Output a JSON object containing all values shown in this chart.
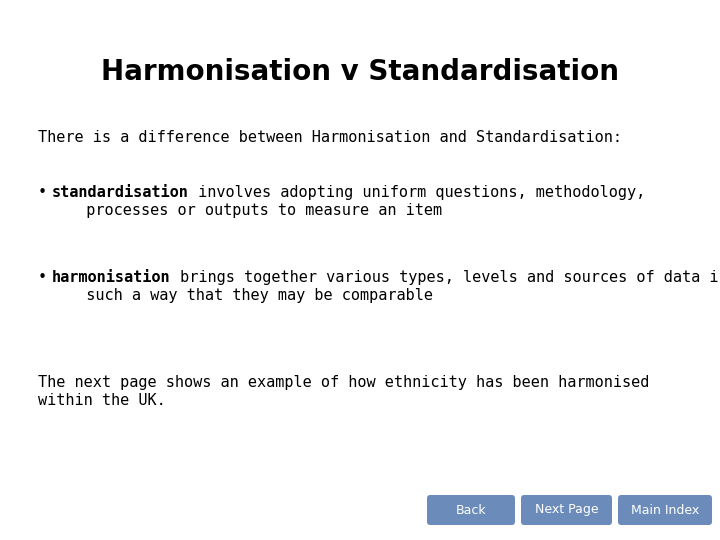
{
  "title": "Harmonisation v Standardisation",
  "title_fontsize": 20,
  "body_fontsize": 11,
  "bg_color": "#ffffff",
  "text_color": "#000000",
  "intro_text": "There is a difference between Harmonisation and Standardisation:",
  "bullet1_bold": "standardisation",
  "bullet1_line1_rest": " involves adopting uniform questions, methodology,",
  "bullet1_line2": "  processes or outputs to measure an item",
  "bullet2_bold": "harmonisation",
  "bullet2_line1_rest": " brings together various types, levels and sources of data in",
  "bullet2_line2": "  such a way that they may be comparable",
  "footer_line1": "The next page shows an example of how ethnicity has been harmonised",
  "footer_line2": "within the UK.",
  "buttons": [
    "Back",
    "Next Page",
    "Main Index"
  ],
  "button_color": "#6b8cba",
  "button_text_color": "#ffffff",
  "button_fontsize": 9,
  "body_font": "DejaVu Sans Mono",
  "title_font": "DejaVu Sans"
}
